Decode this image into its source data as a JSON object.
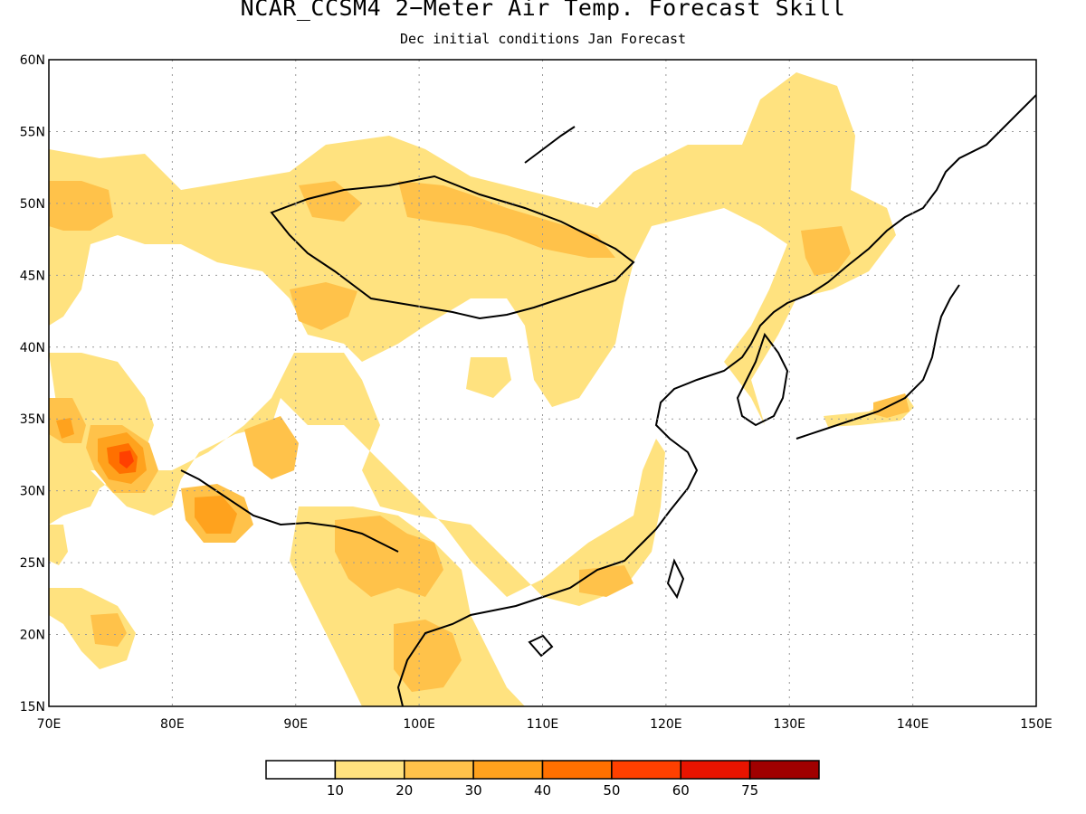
{
  "header": {
    "title": "NCAR_CCSM4 2−Meter Air Temp. Forecast Skill",
    "subtitle": "Dec initial conditions  Jan Forecast"
  },
  "axes": {
    "lat_labels": [
      "15N",
      "20N",
      "25N",
      "30N",
      "35N",
      "40N",
      "45N",
      "50N",
      "55N",
      "60N"
    ],
    "lon_labels": [
      "70E",
      "80E",
      "90E",
      "100E",
      "110E",
      "120E",
      "130E",
      "140E",
      "150E"
    ],
    "lat_range": [
      15,
      60
    ],
    "lon_range": [
      70,
      150
    ],
    "grid": "dotted"
  },
  "colorbar": {
    "colors": [
      "#ffffff",
      "#ffe27f",
      "#ffc24a",
      "#ffa21d",
      "#ff7000",
      "#ff4000",
      "#e81400",
      "#a00000"
    ],
    "tick_labels": [
      "10",
      "20",
      "30",
      "40",
      "50",
      "60",
      "75"
    ]
  },
  "legend_colors": {
    "bin_10_20": "#ffe27f",
    "bin_20_30": "#ffc24a",
    "bin_30_40": "#ffa21d",
    "bin_40_50": "#ff7000",
    "bin_50_60": "#ff4000"
  }
}
